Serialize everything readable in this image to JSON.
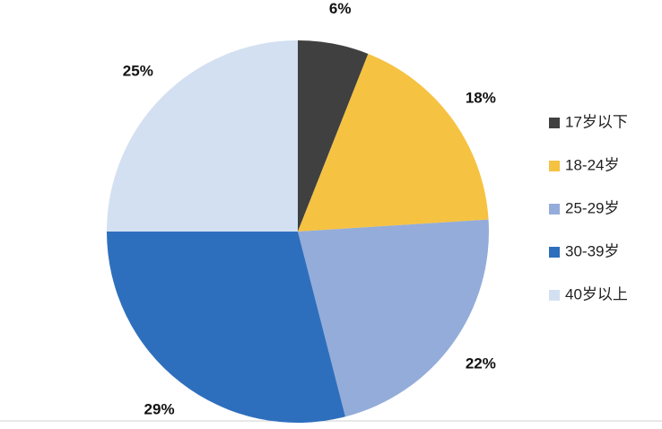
{
  "chart_data": {
    "type": "pie",
    "categories": [
      "17岁以下",
      "18-24岁",
      "25-29岁",
      "30-39岁",
      "40岁以上"
    ],
    "values": [
      6,
      18,
      22,
      29,
      25
    ],
    "value_labels": [
      "6%",
      "18%",
      "22%",
      "29%",
      "25%"
    ],
    "colors": [
      "#404040",
      "#f5c242",
      "#94acd9",
      "#2e6fbd",
      "#d3e0f1"
    ],
    "legend": "right"
  }
}
